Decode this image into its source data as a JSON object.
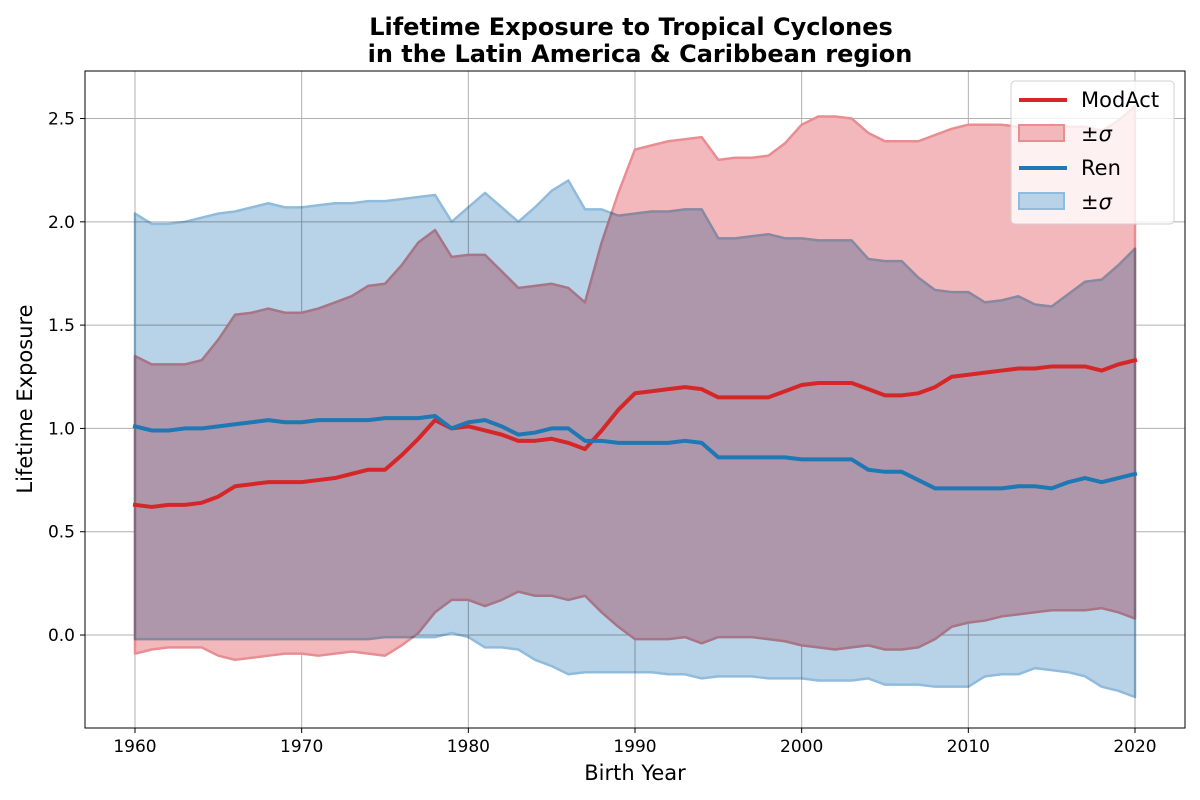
{
  "chart_data": {
    "type": "line",
    "title_line1": "Lifetime Exposure to Tropical Cyclones",
    "title_line2": "in the Latin America & Caribbean region",
    "xlabel": "Birth Year",
    "ylabel": "Lifetime Exposure",
    "xlim": [
      1957,
      2023
    ],
    "ylim": [
      -0.45,
      2.73
    ],
    "xticks": [
      "1960",
      "1970",
      "1980",
      "1990",
      "2000",
      "2010",
      "2020"
    ],
    "yticks": [
      "0.0",
      "0.5",
      "1.0",
      "1.5",
      "2.0",
      "2.5"
    ],
    "grid": true,
    "legend_position": "top-right",
    "x": [
      1960,
      1961,
      1962,
      1963,
      1964,
      1965,
      1966,
      1967,
      1968,
      1969,
      1970,
      1971,
      1972,
      1973,
      1974,
      1975,
      1976,
      1977,
      1978,
      1979,
      1980,
      1981,
      1982,
      1983,
      1984,
      1985,
      1986,
      1987,
      1988,
      1989,
      1990,
      1991,
      1992,
      1993,
      1994,
      1995,
      1996,
      1997,
      1998,
      1999,
      2000,
      2001,
      2002,
      2003,
      2004,
      2005,
      2006,
      2007,
      2008,
      2009,
      2010,
      2011,
      2012,
      2013,
      2014,
      2015,
      2016,
      2017,
      2018,
      2019,
      2020
    ],
    "series": [
      {
        "name": "ModAct",
        "band_name": "±σ",
        "color": "#d62728",
        "band_fill": "#f2b8bb",
        "band_edge": "#e88e92",
        "values": [
          0.63,
          0.62,
          0.63,
          0.63,
          0.64,
          0.67,
          0.72,
          0.73,
          0.74,
          0.74,
          0.74,
          0.75,
          0.76,
          0.78,
          0.8,
          0.8,
          0.87,
          0.95,
          1.04,
          1.0,
          1.01,
          0.99,
          0.97,
          0.94,
          0.94,
          0.95,
          0.93,
          0.9,
          0.99,
          1.09,
          1.17,
          1.18,
          1.19,
          1.2,
          1.19,
          1.15,
          1.15,
          1.15,
          1.15,
          1.18,
          1.21,
          1.22,
          1.22,
          1.22,
          1.19,
          1.16,
          1.16,
          1.17,
          1.2,
          1.25,
          1.26,
          1.27,
          1.28,
          1.29,
          1.29,
          1.3,
          1.3,
          1.3,
          1.28,
          1.31,
          1.33
        ],
        "upper": [
          1.35,
          1.31,
          1.31,
          1.31,
          1.33,
          1.43,
          1.55,
          1.56,
          1.58,
          1.56,
          1.56,
          1.58,
          1.61,
          1.64,
          1.69,
          1.7,
          1.79,
          1.9,
          1.96,
          1.83,
          1.84,
          1.84,
          1.76,
          1.68,
          1.69,
          1.7,
          1.68,
          1.61,
          1.9,
          2.14,
          2.35,
          2.37,
          2.39,
          2.4,
          2.41,
          2.3,
          2.31,
          2.31,
          2.32,
          2.38,
          2.47,
          2.51,
          2.51,
          2.5,
          2.43,
          2.39,
          2.39,
          2.39,
          2.42,
          2.45,
          2.47,
          2.47,
          2.47,
          2.46,
          2.46,
          2.47,
          2.46,
          2.46,
          2.44,
          2.49,
          2.56
        ],
        "lower": [
          -0.09,
          -0.07,
          -0.06,
          -0.06,
          -0.06,
          -0.1,
          -0.12,
          -0.11,
          -0.1,
          -0.09,
          -0.09,
          -0.1,
          -0.09,
          -0.08,
          -0.09,
          -0.1,
          -0.05,
          0.01,
          0.11,
          0.17,
          0.17,
          0.14,
          0.17,
          0.21,
          0.19,
          0.19,
          0.17,
          0.19,
          0.11,
          0.04,
          -0.02,
          -0.02,
          -0.02,
          -0.01,
          -0.04,
          -0.01,
          -0.01,
          -0.01,
          -0.02,
          -0.03,
          -0.05,
          -0.06,
          -0.07,
          -0.06,
          -0.05,
          -0.07,
          -0.07,
          -0.06,
          -0.02,
          0.04,
          0.06,
          0.07,
          0.09,
          0.1,
          0.11,
          0.12,
          0.12,
          0.12,
          0.13,
          0.11,
          0.08
        ]
      },
      {
        "name": "Ren",
        "band_name": "±σ",
        "color": "#1f77b4",
        "band_fill": "#b8d2e8",
        "band_edge": "#8fbcdc",
        "values": [
          1.01,
          0.99,
          0.99,
          1.0,
          1.0,
          1.01,
          1.02,
          1.03,
          1.04,
          1.03,
          1.03,
          1.04,
          1.04,
          1.04,
          1.04,
          1.05,
          1.05,
          1.05,
          1.06,
          1.0,
          1.03,
          1.04,
          1.01,
          0.97,
          0.98,
          1.0,
          1.0,
          0.94,
          0.94,
          0.93,
          0.93,
          0.93,
          0.93,
          0.94,
          0.93,
          0.86,
          0.86,
          0.86,
          0.86,
          0.86,
          0.85,
          0.85,
          0.85,
          0.85,
          0.8,
          0.79,
          0.79,
          0.75,
          0.71,
          0.71,
          0.71,
          0.71,
          0.71,
          0.72,
          0.72,
          0.71,
          0.74,
          0.76,
          0.74,
          0.76,
          0.78
        ],
        "upper": [
          2.04,
          1.99,
          1.99,
          2.0,
          2.02,
          2.04,
          2.05,
          2.07,
          2.09,
          2.07,
          2.07,
          2.08,
          2.09,
          2.09,
          2.1,
          2.1,
          2.11,
          2.12,
          2.13,
          2.0,
          2.07,
          2.14,
          2.07,
          2.0,
          2.07,
          2.15,
          2.2,
          2.06,
          2.06,
          2.03,
          2.04,
          2.05,
          2.05,
          2.06,
          2.06,
          1.92,
          1.92,
          1.93,
          1.94,
          1.92,
          1.92,
          1.91,
          1.91,
          1.91,
          1.82,
          1.81,
          1.81,
          1.73,
          1.67,
          1.66,
          1.66,
          1.61,
          1.62,
          1.64,
          1.6,
          1.59,
          1.65,
          1.71,
          1.72,
          1.79,
          1.87
        ],
        "lower": [
          -0.02,
          -0.02,
          -0.02,
          -0.02,
          -0.02,
          -0.02,
          -0.02,
          -0.02,
          -0.02,
          -0.02,
          -0.02,
          -0.02,
          -0.02,
          -0.02,
          -0.02,
          -0.01,
          -0.01,
          -0.01,
          -0.01,
          0.01,
          -0.01,
          -0.06,
          -0.06,
          -0.07,
          -0.12,
          -0.15,
          -0.19,
          -0.18,
          -0.18,
          -0.18,
          -0.18,
          -0.18,
          -0.19,
          -0.19,
          -0.21,
          -0.2,
          -0.2,
          -0.2,
          -0.21,
          -0.21,
          -0.21,
          -0.22,
          -0.22,
          -0.22,
          -0.21,
          -0.24,
          -0.24,
          -0.24,
          -0.25,
          -0.25,
          -0.25,
          -0.2,
          -0.19,
          -0.19,
          -0.16,
          -0.17,
          -0.18,
          -0.2,
          -0.25,
          -0.27,
          -0.3
        ]
      }
    ]
  }
}
